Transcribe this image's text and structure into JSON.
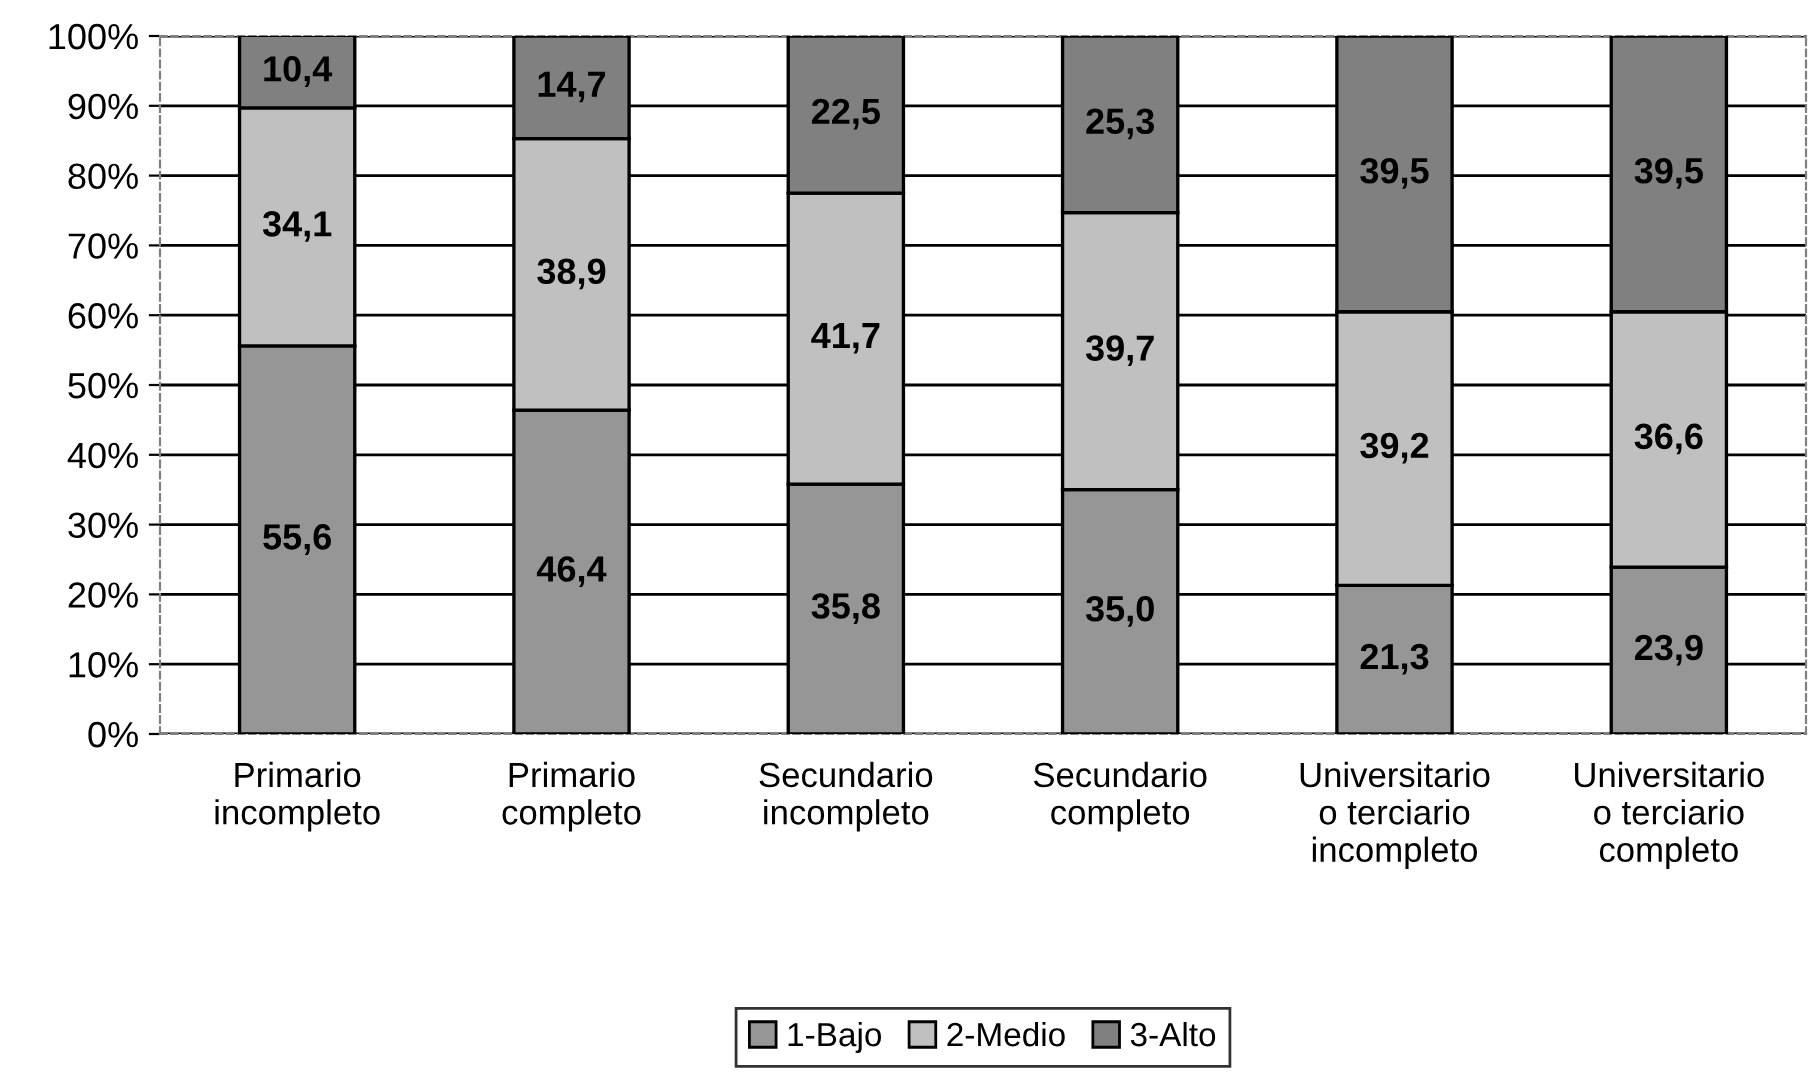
{
  "chart_data": {
    "type": "bar",
    "stacked": true,
    "categories": [
      "Primario\nincompleto",
      "Primario\ncompleto",
      "Secundario\nincompleto",
      "Secundario\ncompleto",
      "Universitario\no terciario\nincompleto",
      "Universitario\no terciario\ncompleto"
    ],
    "series": [
      {
        "name": "1-Bajo",
        "color": "#969696",
        "values": [
          55.6,
          46.4,
          35.8,
          35.0,
          21.3,
          23.9
        ],
        "value_labels": [
          "55,6",
          "46,4",
          "35,8",
          "35,0",
          "21,3",
          "23,9"
        ]
      },
      {
        "name": "2-Medio",
        "color": "#c0c0c0",
        "values": [
          34.1,
          38.9,
          41.7,
          39.7,
          39.2,
          36.6
        ],
        "value_labels": [
          "34,1",
          "38,9",
          "41,7",
          "39,7",
          "39,2",
          "36,6"
        ]
      },
      {
        "name": "3-Alto",
        "color": "#808080",
        "values": [
          10.4,
          14.7,
          22.5,
          25.3,
          39.5,
          39.5
        ],
        "value_labels": [
          "10,4",
          "14,7",
          "22,5",
          "25,3",
          "39,5",
          "39,5"
        ]
      }
    ],
    "ylim": [
      0,
      100
    ],
    "yticks": [
      {
        "value": 0,
        "label": "0%"
      },
      {
        "value": 10,
        "label": "10%"
      },
      {
        "value": 20,
        "label": "20%"
      },
      {
        "value": 30,
        "label": "30%"
      },
      {
        "value": 40,
        "label": "40%"
      },
      {
        "value": 50,
        "label": "50%"
      },
      {
        "value": 60,
        "label": "60%"
      },
      {
        "value": 70,
        "label": "70%"
      },
      {
        "value": 80,
        "label": "80%"
      },
      {
        "value": 90,
        "label": "90%"
      },
      {
        "value": 100,
        "label": "100%"
      }
    ],
    "grid": "y",
    "legend": "bottom"
  }
}
